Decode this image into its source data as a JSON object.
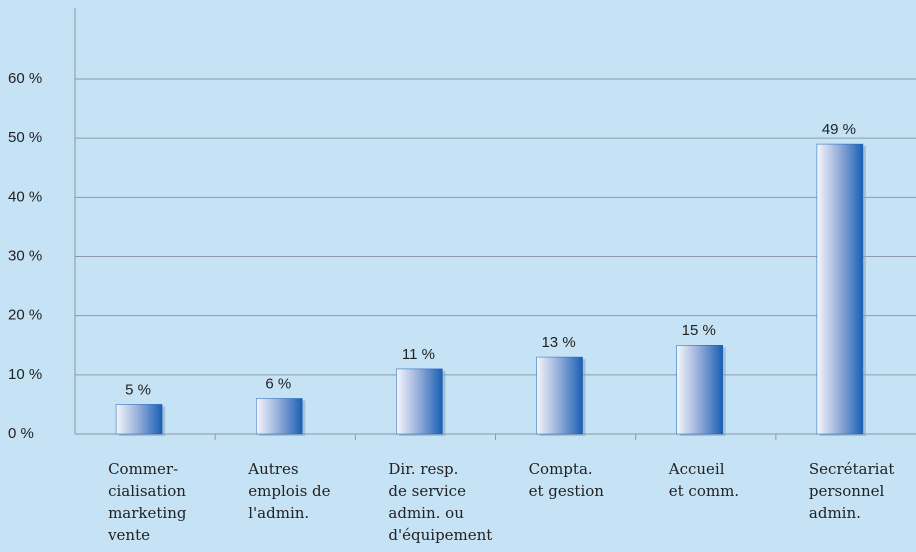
{
  "chart_data": {
    "type": "bar",
    "categories": [
      [
        "Commer-",
        "cialisation",
        "marketing",
        "vente"
      ],
      [
        "Autres",
        "emplois de",
        "l'admin."
      ],
      [
        "Dir. resp.",
        "de service",
        "admin. ou",
        "d'équipement"
      ],
      [
        "Compta.",
        "et gestion"
      ],
      [
        "Accueil",
        "et comm."
      ],
      [
        "Secrétariat",
        "personnel",
        "admin."
      ]
    ],
    "values": [
      5,
      6,
      11,
      13,
      15,
      49
    ],
    "value_labels": [
      "5 %",
      "6 %",
      "11 %",
      "13 %",
      "15 %",
      "49 %"
    ],
    "color": "#1a5fb4",
    "ylim": [
      0,
      72
    ],
    "yticks": [
      {
        "value": 0,
        "label": "0 %"
      },
      {
        "value": 10,
        "label": "10 %"
      },
      {
        "value": 20,
        "label": "20 %"
      },
      {
        "value": 30,
        "label": "30 %"
      },
      {
        "value": 40,
        "label": "40 %"
      },
      {
        "value": 50,
        "label": "50 %"
      },
      {
        "value": 60,
        "label": "60 %"
      }
    ],
    "grid": true
  }
}
